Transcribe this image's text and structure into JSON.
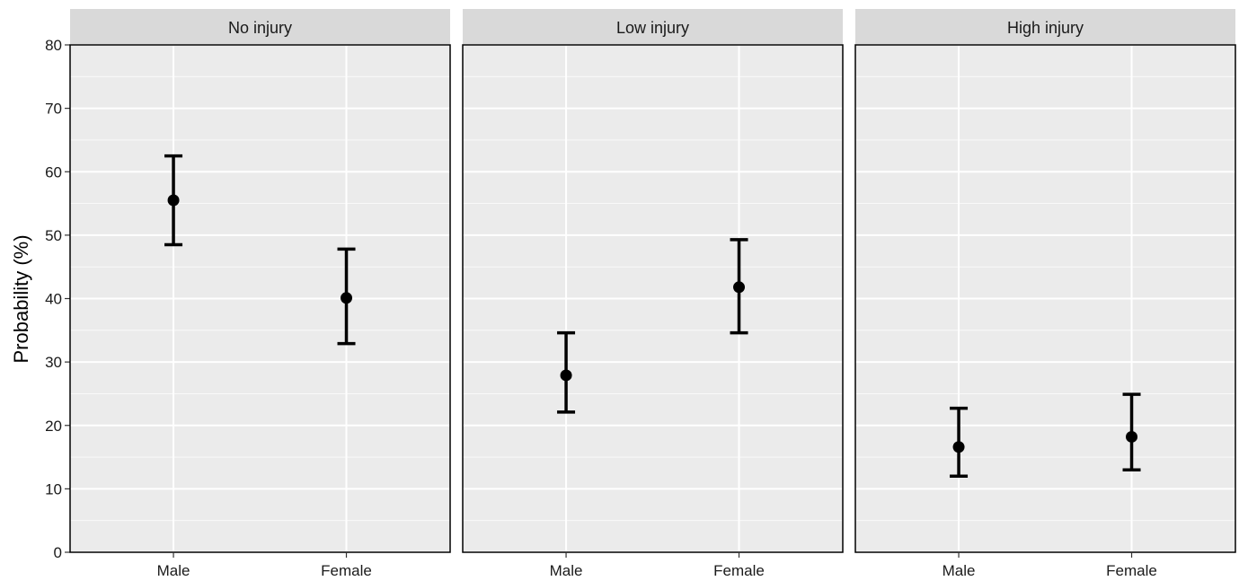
{
  "chart_data": {
    "type": "scatter",
    "subtype": "point-errorbar-facets",
    "title": "",
    "xlabel": "",
    "ylabel": "Probability (%)",
    "ylim": [
      0,
      80
    ],
    "yticks": [
      0,
      10,
      20,
      30,
      40,
      50,
      60,
      70,
      80
    ],
    "categories": [
      "Male",
      "Female"
    ],
    "grid": true,
    "legend": "none",
    "colors": {
      "panel_background": "#ebebeb",
      "strip_background": "#d9d9d9",
      "grid": "#ffffff",
      "marks": "#000000"
    },
    "facets": [
      {
        "label": "No injury",
        "points": [
          {
            "category": "Male",
            "value": 55.5,
            "lower": 48.5,
            "upper": 62.5
          },
          {
            "category": "Female",
            "value": 40.1,
            "lower": 32.9,
            "upper": 47.8
          }
        ]
      },
      {
        "label": "Low injury",
        "points": [
          {
            "category": "Male",
            "value": 27.9,
            "lower": 22.1,
            "upper": 34.6
          },
          {
            "category": "Female",
            "value": 41.8,
            "lower": 34.6,
            "upper": 49.3
          }
        ]
      },
      {
        "label": "High injury",
        "points": [
          {
            "category": "Male",
            "value": 16.6,
            "lower": 12.0,
            "upper": 22.7
          },
          {
            "category": "Female",
            "value": 18.2,
            "lower": 13.0,
            "upper": 24.9
          }
        ]
      }
    ]
  }
}
